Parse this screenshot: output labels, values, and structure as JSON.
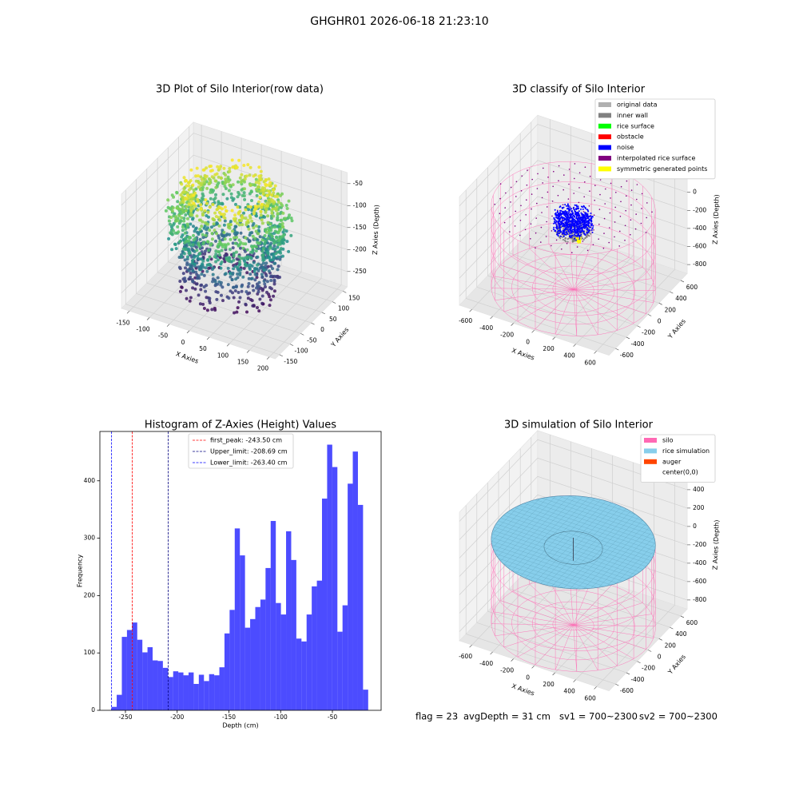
{
  "suptitle": "GHGHR01 2026-06-18 21:23:10",
  "chart_data": [
    {
      "type": "scatter3d",
      "title": "3D Plot of Silo Interior(row data)",
      "xlabel": "X Axies",
      "ylabel": "Y Axies",
      "zlabel": "Z Axies (Depth)",
      "xlim": [
        -170,
        215
      ],
      "ylim": [
        -170,
        170
      ],
      "zlim": [
        -285,
        -25
      ],
      "xticks": [
        -150,
        -100,
        -50,
        0,
        50,
        100,
        150,
        200
      ],
      "yticks": [
        -150,
        -100,
        -50,
        0,
        50,
        100,
        150
      ],
      "zticks": [
        -250,
        -200,
        -150,
        -100,
        -50
      ]
    },
    {
      "type": "classify3d",
      "title": "3D classify of Silo Interior",
      "xlabel": "X Axies",
      "ylabel": "Y Axies",
      "zlabel": "Z Axies (Depth)",
      "xlim": [
        -720,
        720
      ],
      "ylim": [
        -720,
        720
      ],
      "zlim": [
        -900,
        300
      ],
      "xticks": [
        -600,
        -400,
        -200,
        0,
        200,
        400,
        600
      ],
      "yticks": [
        -600,
        -400,
        -200,
        0,
        200,
        400,
        600
      ],
      "zticks": [
        -800,
        -600,
        -400,
        -200,
        0,
        200
      ],
      "legend": [
        {
          "name": "original data",
          "color": "#b0b0b0"
        },
        {
          "name": "inner wall",
          "color": "#808080"
        },
        {
          "name": "rice surface",
          "color": "#00ff00"
        },
        {
          "name": "obstacle",
          "color": "#ff0000"
        },
        {
          "name": "noise",
          "color": "#0000ff"
        },
        {
          "name": "interpolated rice surface",
          "color": "#800080"
        },
        {
          "name": "symmetric generated points",
          "color": "#ffff00"
        }
      ]
    },
    {
      "type": "histogram",
      "title": "Histogram of Z-Axies (Height) Values",
      "xlabel": "Depth (cm)",
      "ylabel": "Frequency",
      "color": "#0000ff",
      "alpha": 0.7,
      "xlim": [
        -274.7,
        -2.9
      ],
      "ylim": [
        0,
        486
      ],
      "xticks": [
        -250,
        -200,
        -150,
        -100,
        -50
      ],
      "yticks": [
        0,
        100,
        200,
        300,
        400
      ],
      "bins": [
        -263.4,
        -258.44,
        -253.48,
        -248.52,
        -243.56,
        -238.6,
        -233.64,
        -228.68,
        -223.72,
        -218.76,
        -213.8,
        -208.84,
        -203.88,
        -198.92,
        -193.96,
        -189,
        -184.04,
        -179.08,
        -174.12,
        -169.16,
        -164.2,
        -159.24,
        -154.28,
        -149.32,
        -144.36,
        -139.4,
        -134.44,
        -129.48,
        -124.52,
        -119.56,
        -114.6,
        -109.64,
        -104.68,
        -99.72,
        -94.76,
        -89.8,
        -84.84,
        -79.88,
        -74.92,
        -69.96,
        -65,
        -60.04,
        -55.08,
        -50.12,
        -45.16,
        -40.2,
        -35.24,
        -30.28,
        -25.32,
        -20.36,
        -15.4
      ],
      "counts": [
        6,
        27,
        128,
        140,
        153,
        123,
        101,
        110,
        87,
        86,
        74,
        58,
        68,
        66,
        61,
        66,
        46,
        62,
        51,
        63,
        61,
        75,
        134,
        175,
        317,
        270,
        144,
        159,
        180,
        193,
        248,
        330,
        187,
        167,
        312,
        262,
        125,
        120,
        167,
        216,
        226,
        369,
        463,
        424,
        137,
        183,
        395,
        451,
        358,
        36
      ],
      "lines": [
        {
          "label": "first_peak: -243.50 cm",
          "value": -243.5,
          "color": "#ff0000"
        },
        {
          "label": "Upper_limit: -208.69 cm",
          "value": -208.69,
          "color": "#000080"
        },
        {
          "label": "Lower_limit: -263.40 cm",
          "value": -263.4,
          "color": "#0000ff"
        }
      ]
    },
    {
      "type": "surface3d",
      "title": "3D simulation of Silo Interior",
      "xlabel": "X Axies",
      "ylabel": "Y Axies",
      "zlabel": "Z Axies (Depth)",
      "xlim": [
        -720,
        720
      ],
      "ylim": [
        -720,
        720
      ],
      "zlim": [
        -900,
        500
      ],
      "xticks": [
        -600,
        -400,
        -200,
        0,
        200,
        400,
        600
      ],
      "yticks": [
        -600,
        -400,
        -200,
        0,
        200,
        400,
        600
      ],
      "zticks": [
        -800,
        -600,
        -400,
        -200,
        0,
        200,
        400
      ],
      "legend": [
        {
          "name": "silo",
          "color": "#ff69b4"
        },
        {
          "name": "rice simulation",
          "color": "#87ceeb"
        },
        {
          "name": "auger",
          "color": "#ff4500"
        },
        {
          "name": "center(0,0)",
          "color": "#ffffff"
        }
      ]
    }
  ],
  "footer": [
    "flag = 23",
    "avgDepth = 31 cm",
    "sv1 = 700~2300",
    "sv2 = 700~2300"
  ]
}
